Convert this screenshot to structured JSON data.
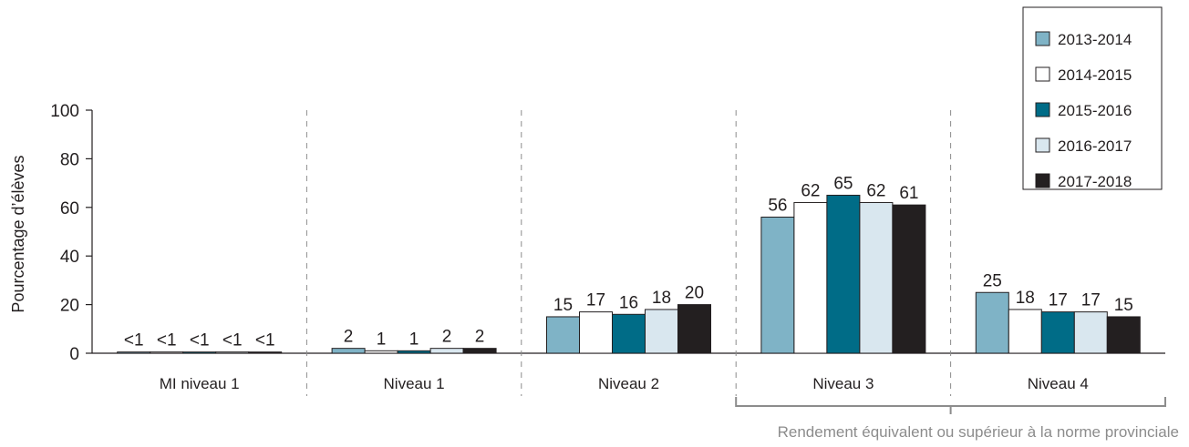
{
  "chart_data": {
    "type": "bar",
    "ylabel": "Pourcentage d’élèves",
    "ylim": [
      0,
      100
    ],
    "yticks": [
      "0",
      "20",
      "40",
      "60",
      "80",
      "100"
    ],
    "categories": [
      "MI niveau 1",
      "Niveau 1",
      "Niveau 2",
      "Niveau 3",
      "Niveau 4"
    ],
    "series": [
      {
        "name": "2013-2014",
        "color": "#7fb3c6",
        "values": [
          0.5,
          2,
          15,
          56,
          25
        ],
        "labels": [
          "<1",
          "2",
          "15",
          "56",
          "25"
        ]
      },
      {
        "name": "2014-2015",
        "color": "#ffffff",
        "values": [
          0.5,
          1,
          17,
          62,
          18
        ],
        "labels": [
          "<1",
          "1",
          "17",
          "62",
          "18"
        ]
      },
      {
        "name": "2015-2016",
        "color": "#006c87",
        "values": [
          0.5,
          1,
          16,
          65,
          17
        ],
        "labels": [
          "<1",
          "1",
          "16",
          "65",
          "17"
        ]
      },
      {
        "name": "2016-2017",
        "color": "#d9e7ef",
        "values": [
          0.5,
          2,
          18,
          62,
          17
        ],
        "labels": [
          "<1",
          "2",
          "18",
          "62",
          "17"
        ]
      },
      {
        "name": "2017-2018",
        "color": "#231f20",
        "values": [
          0.5,
          2,
          20,
          61,
          15
        ],
        "labels": [
          "<1",
          "2",
          "20",
          "61",
          "15"
        ]
      }
    ],
    "legend_position": "top-right",
    "grid": false,
    "bracket": {
      "text": "Rendement équivalent ou supérieur à la norme provinciale",
      "categories": [
        "Niveau 3",
        "Niveau 4"
      ]
    }
  }
}
